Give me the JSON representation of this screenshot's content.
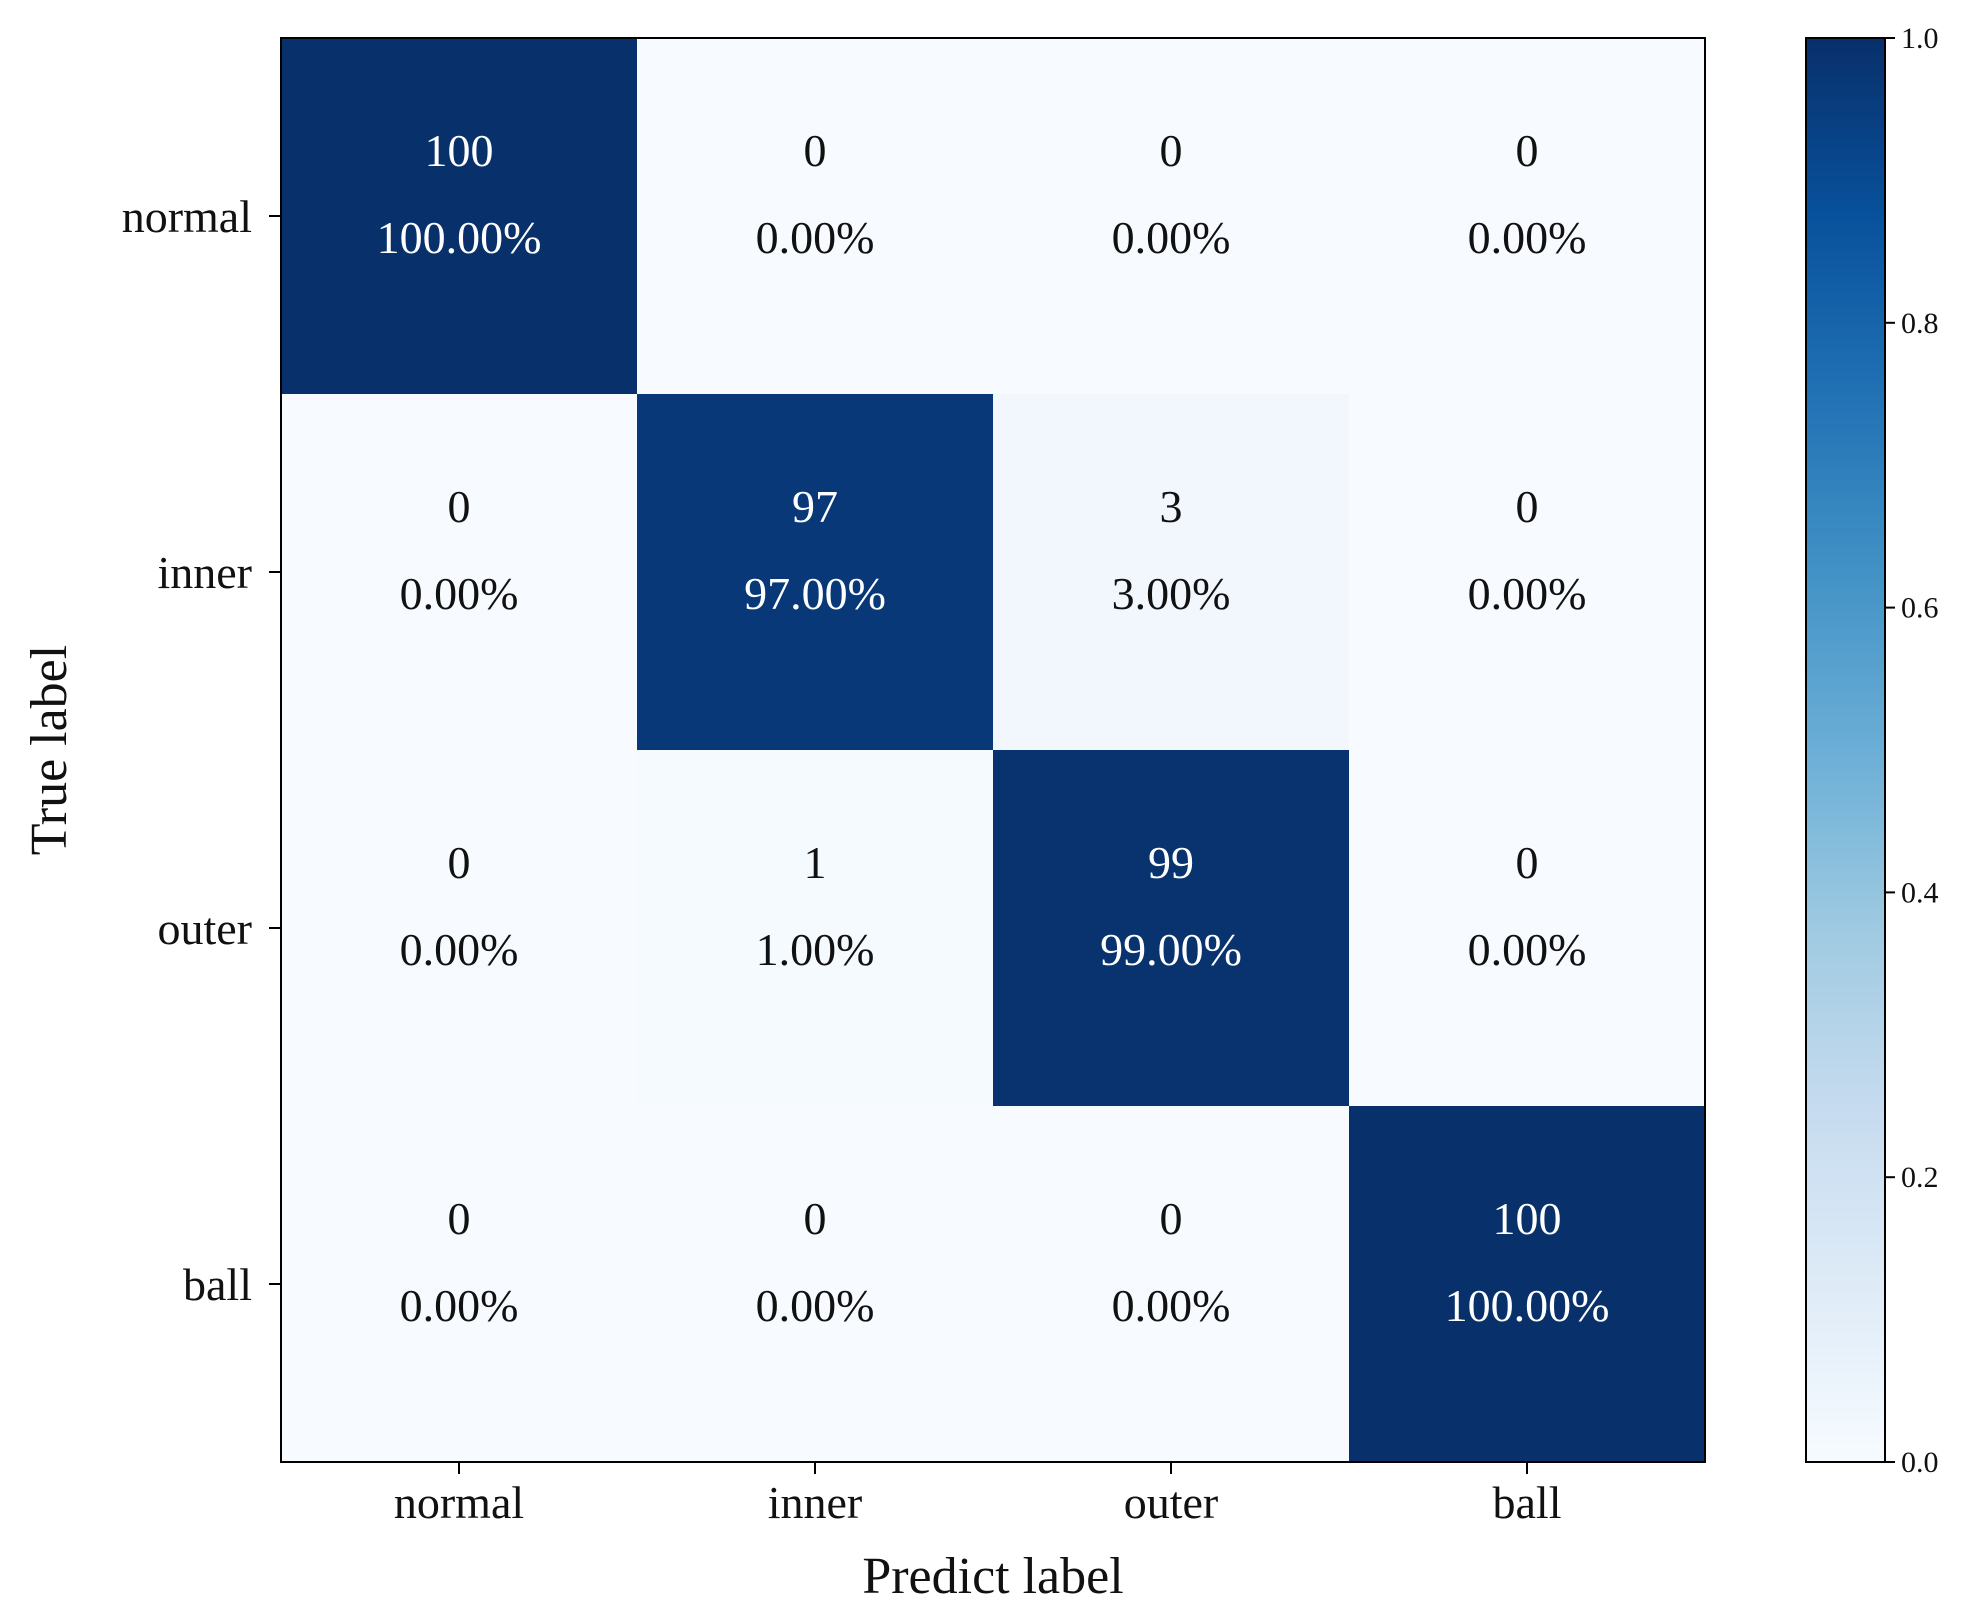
{
  "chart_data": {
    "type": "heatmap",
    "title": "",
    "xlabel": "Predict label",
    "ylabel": "True label",
    "x_categories": [
      "normal",
      "inner",
      "outer",
      "ball"
    ],
    "y_categories": [
      "normal",
      "inner",
      "outer",
      "ball"
    ],
    "counts": [
      [
        100,
        0,
        0,
        0
      ],
      [
        0,
        97,
        3,
        0
      ],
      [
        0,
        1,
        99,
        0
      ],
      [
        0,
        0,
        0,
        100
      ]
    ],
    "percent_labels": [
      [
        "100.00%",
        "0.00%",
        "0.00%",
        "0.00%"
      ],
      [
        "0.00%",
        "97.00%",
        "3.00%",
        "0.00%"
      ],
      [
        "0.00%",
        "1.00%",
        "99.00%",
        "0.00%"
      ],
      [
        "0.00%",
        "0.00%",
        "0.00%",
        "100.00%"
      ]
    ],
    "values": [
      [
        1.0,
        0.0,
        0.0,
        0.0
      ],
      [
        0.0,
        0.97,
        0.03,
        0.0
      ],
      [
        0.0,
        0.01,
        0.99,
        0.0
      ],
      [
        0.0,
        0.0,
        0.0,
        1.0
      ]
    ],
    "colorbar": {
      "range": [
        0.0,
        1.0
      ],
      "ticks": [
        "0.0",
        "0.2",
        "0.4",
        "0.6",
        "0.8",
        "1.0"
      ],
      "colormap": "Blues",
      "color_low": "#f7fbff",
      "color_high": "#08306b"
    },
    "grid": false,
    "legend": "colorbar-right"
  }
}
